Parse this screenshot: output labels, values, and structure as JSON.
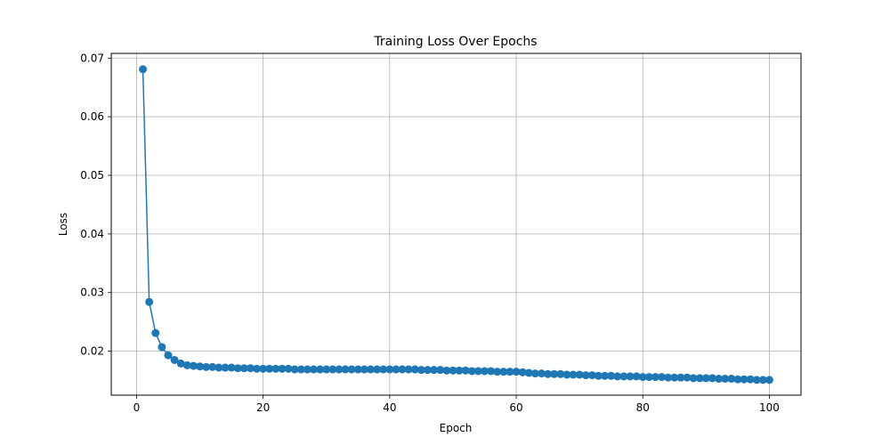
{
  "chart_data": {
    "type": "line",
    "title": "Training Loss Over Epochs",
    "xlabel": "Epoch",
    "ylabel": "Loss",
    "xlim": [
      -4,
      105
    ],
    "ylim": [
      0.0125,
      0.0708
    ],
    "xticks": [
      0,
      20,
      40,
      60,
      80,
      100
    ],
    "yticks": [
      0.02,
      0.03,
      0.04,
      0.05,
      0.06,
      0.07
    ],
    "ytick_labels": [
      "0.02",
      "0.03",
      "0.04",
      "0.05",
      "0.06",
      "0.07"
    ],
    "grid": true,
    "line_color": "#1f77b4",
    "marker": "circle",
    "series": [
      {
        "x": [
          1,
          2,
          3,
          4,
          5,
          6,
          7,
          8,
          9,
          10,
          11,
          12,
          13,
          14,
          15,
          16,
          17,
          18,
          19,
          20,
          21,
          22,
          23,
          24,
          25,
          26,
          27,
          28,
          29,
          30,
          31,
          32,
          33,
          34,
          35,
          36,
          37,
          38,
          39,
          40,
          41,
          42,
          43,
          44,
          45,
          46,
          47,
          48,
          49,
          50,
          51,
          52,
          53,
          54,
          55,
          56,
          57,
          58,
          59,
          60,
          61,
          62,
          63,
          64,
          65,
          66,
          67,
          68,
          69,
          70,
          71,
          72,
          73,
          74,
          75,
          76,
          77,
          78,
          79,
          80,
          81,
          82,
          83,
          84,
          85,
          86,
          87,
          88,
          89,
          90,
          91,
          92,
          93,
          94,
          95,
          96,
          97,
          98,
          99,
          100
        ],
        "values": [
          0.0681,
          0.0284,
          0.0231,
          0.0207,
          0.0193,
          0.0185,
          0.0179,
          0.0176,
          0.0175,
          0.0174,
          0.0173,
          0.0173,
          0.0172,
          0.0172,
          0.0172,
          0.0171,
          0.0171,
          0.0171,
          0.017,
          0.017,
          0.017,
          0.017,
          0.017,
          0.017,
          0.0169,
          0.0169,
          0.0169,
          0.0169,
          0.0169,
          0.0169,
          0.0169,
          0.0169,
          0.0169,
          0.0169,
          0.0169,
          0.0169,
          0.0169,
          0.0169,
          0.0169,
          0.0169,
          0.0169,
          0.0169,
          0.0169,
          0.0169,
          0.0168,
          0.0168,
          0.0168,
          0.0168,
          0.0167,
          0.0167,
          0.0167,
          0.0167,
          0.0166,
          0.0166,
          0.0166,
          0.0166,
          0.0165,
          0.0165,
          0.0165,
          0.0165,
          0.0164,
          0.0163,
          0.0162,
          0.0162,
          0.0161,
          0.0161,
          0.0161,
          0.016,
          0.016,
          0.016,
          0.0159,
          0.0159,
          0.0158,
          0.0158,
          0.0158,
          0.0157,
          0.0157,
          0.0157,
          0.0157,
          0.0156,
          0.0156,
          0.0156,
          0.0156,
          0.0155,
          0.0155,
          0.0155,
          0.0155,
          0.0154,
          0.0154,
          0.0154,
          0.0154,
          0.0153,
          0.0153,
          0.0153,
          0.0152,
          0.0152,
          0.0152,
          0.0151,
          0.0151,
          0.0151
        ]
      }
    ]
  }
}
